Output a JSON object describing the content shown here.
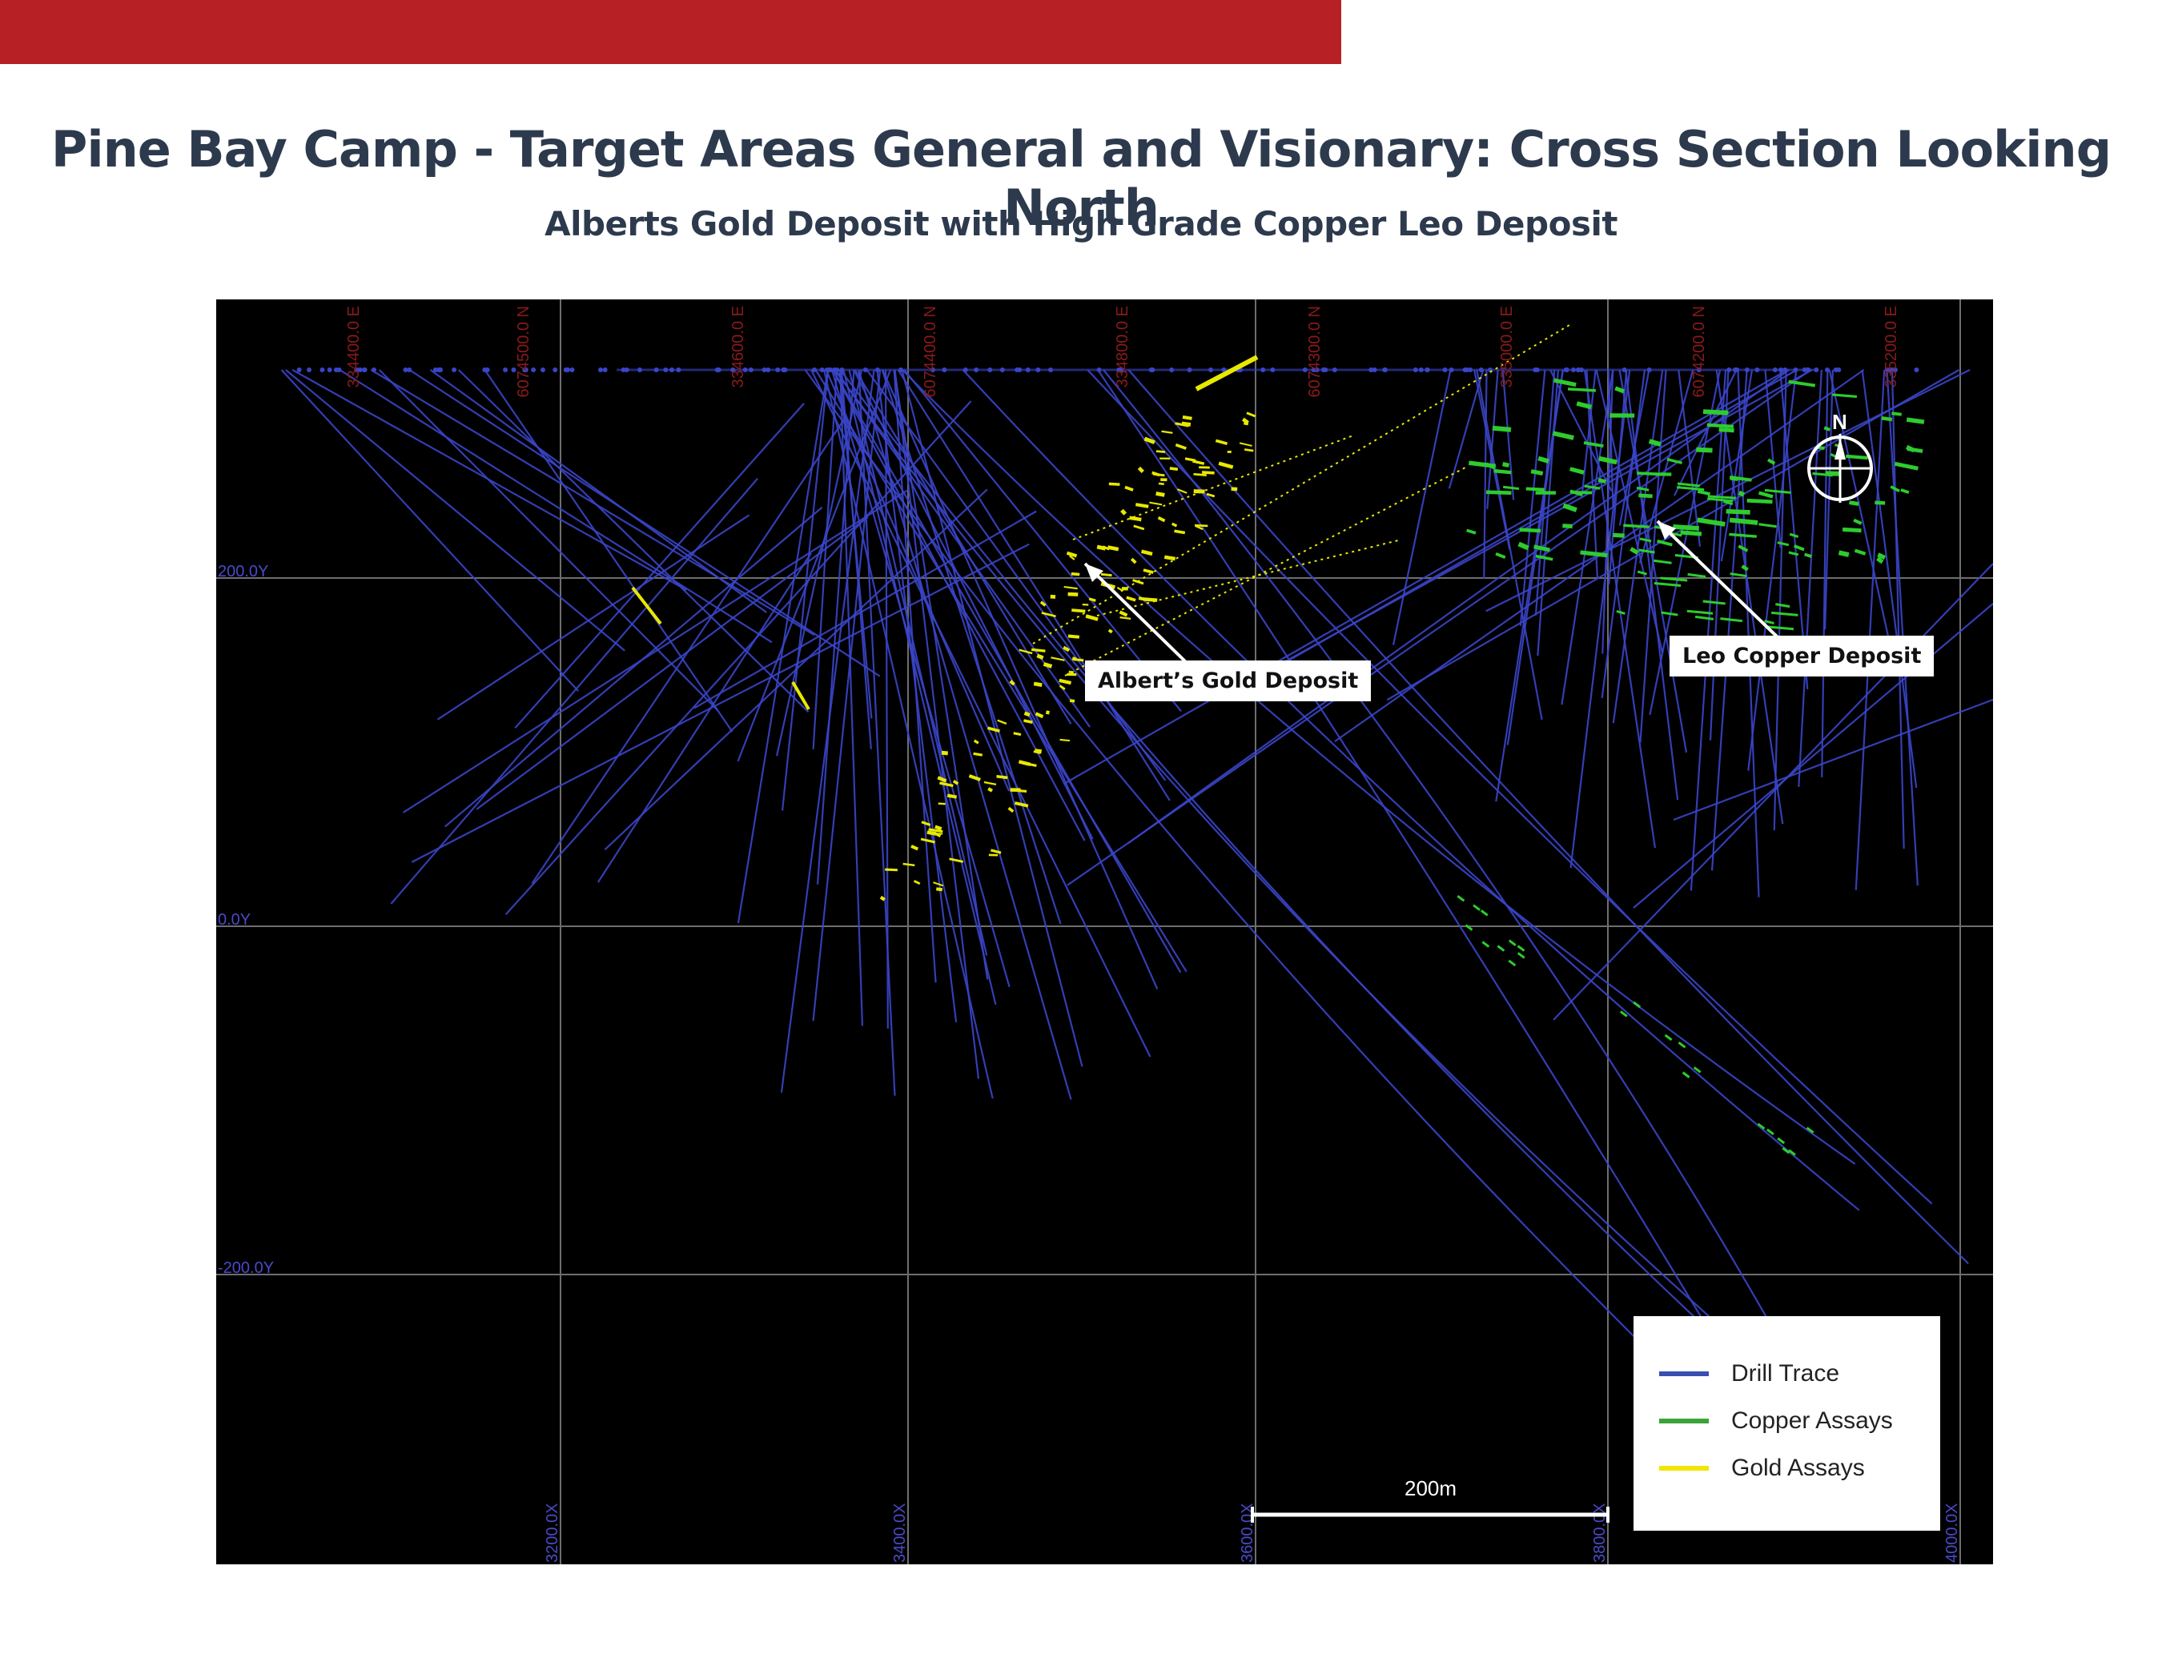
{
  "header": {
    "title": "Pine Bay Camp - Target Areas General and Visionary: Cross Section Looking North",
    "subtitle": "Alberts Gold Deposit with High Grade Copper Leo Deposit"
  },
  "section": {
    "top_labels": [
      "334400.0 E",
      "6074500.0 N",
      "334600.0 E",
      "6074400.0 N",
      "334800.0 E",
      "6074300.0 N",
      "335000.0 E",
      "6074200.0 N",
      "335200.0 E"
    ],
    "left_labels": [
      "200.0Y",
      "0.0Y",
      "-200.0Y"
    ],
    "bottom_labels": [
      "3200.0X",
      "3400.0X",
      "3600.0X",
      "3800.0X",
      "4000.0X"
    ],
    "north_label": "N",
    "scale_label": "200m"
  },
  "callouts": {
    "albert": "Albert’s Gold Deposit",
    "leo": "Leo Copper Deposit"
  },
  "legend": {
    "items": [
      {
        "label": "Drill Trace",
        "color": "#3a4fb0"
      },
      {
        "label": "Copper Assays",
        "color": "#3aa43a"
      },
      {
        "label": "Gold Assays",
        "color": "#f2e600"
      }
    ]
  },
  "colors": {
    "drill": "#3a45c8",
    "copper": "#2ecc2e",
    "gold": "#e8e800",
    "grid": "#6e6e6e",
    "coord_red": "#8a1a1a",
    "coord_blue": "#4a4ac8"
  }
}
